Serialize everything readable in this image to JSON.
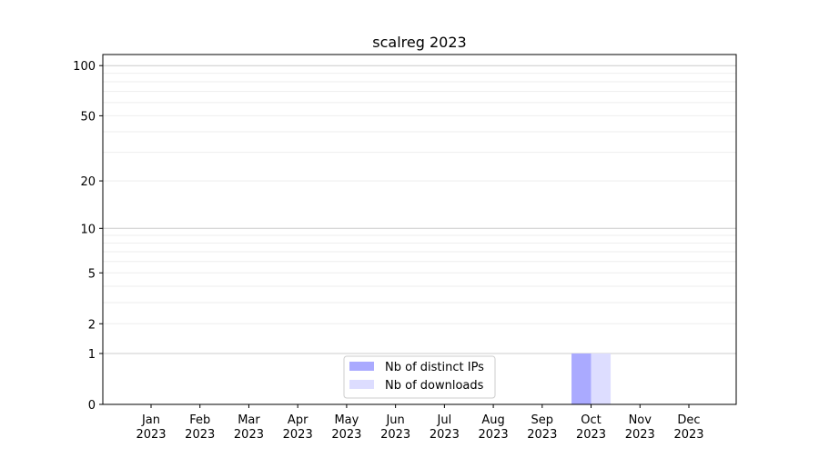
{
  "chart_data": {
    "type": "bar",
    "title": "scalreg 2023",
    "xlabel": "",
    "ylabel": "",
    "yscale": "log(1+y)",
    "ylim": [
      0,
      116
    ],
    "yticks": [
      0,
      1,
      2,
      5,
      10,
      20,
      50,
      100
    ],
    "grid": true,
    "legend_placement": "bottom-center",
    "categories": [
      "Jan\n2023",
      "Feb\n2023",
      "Mar\n2023",
      "Apr\n2023",
      "May\n2023",
      "Jun\n2023",
      "Jul\n2023",
      "Aug\n2023",
      "Sep\n2023",
      "Oct\n2023",
      "Nov\n2023",
      "Dec\n2023"
    ],
    "series": [
      {
        "name": "Nb of distinct IPs",
        "color": "#aaaaff",
        "values": [
          0,
          0,
          0,
          0,
          0,
          0,
          0,
          0,
          0,
          1,
          0,
          0
        ]
      },
      {
        "name": "Nb of downloads",
        "color": "#ddddff",
        "values": [
          0,
          0,
          0,
          0,
          0,
          0,
          0,
          0,
          0,
          1,
          0,
          0
        ]
      }
    ]
  }
}
